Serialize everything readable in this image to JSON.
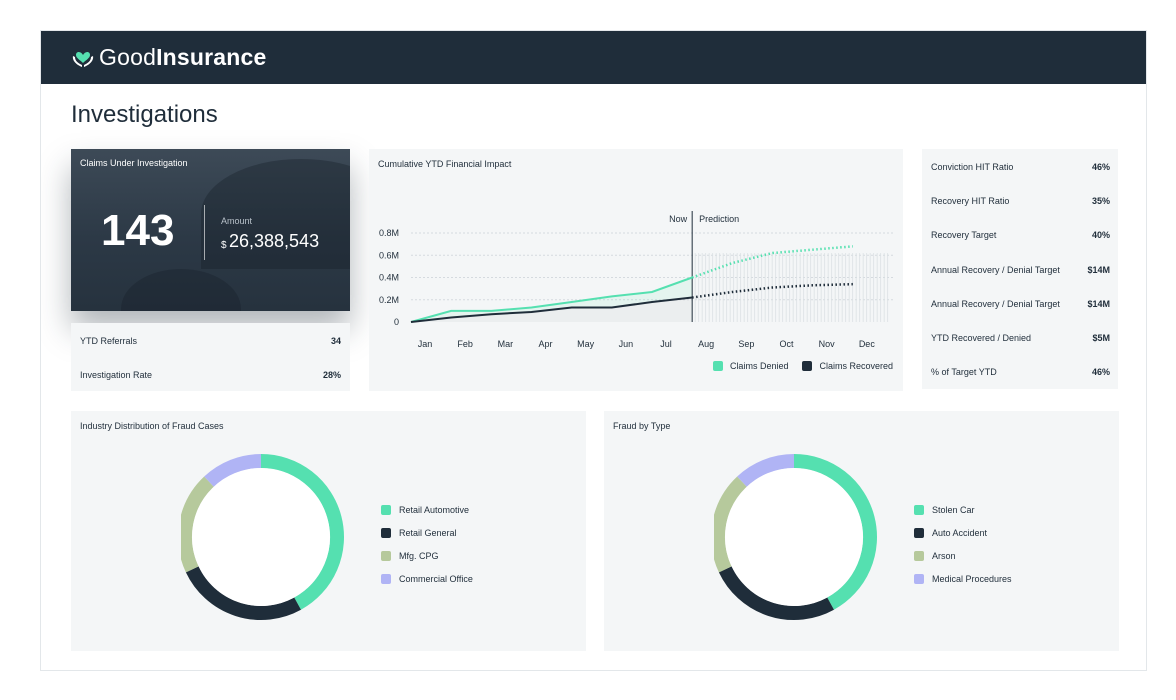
{
  "brand": {
    "name_light": "Good",
    "name_bold": "Insurance",
    "icon": "heart-hands-icon"
  },
  "page": {
    "title": "Investigations"
  },
  "claims": {
    "title": "Claims Under Investigation",
    "count": "143",
    "amount_label": "Amount",
    "currency": "$",
    "amount": "26,388,543"
  },
  "left_stats": [
    {
      "label": "YTD Referrals",
      "value": "34"
    },
    {
      "label": "Investigation Rate",
      "value": "28%"
    }
  ],
  "financial_chart": {
    "title": "Cumulative YTD Financial Impact",
    "now_label": "Now",
    "prediction_label": "Prediction"
  },
  "chart_data": {
    "type": "line",
    "categories": [
      "Jan",
      "Feb",
      "Mar",
      "Apr",
      "May",
      "Jun",
      "Jul",
      "Aug",
      "Sep",
      "Oct",
      "Nov",
      "Dec"
    ],
    "y_ticks": [
      "0.8M",
      "0.6M",
      "0.4M",
      "0.2M",
      "0"
    ],
    "ylim": [
      0,
      0.8
    ],
    "now_index": 7,
    "grid": true,
    "legend_position": "bottom-right",
    "series": [
      {
        "name": "Claims Denied",
        "color": "#55e0b0",
        "values": [
          0.0,
          0.1,
          0.1,
          0.13,
          0.18,
          0.23,
          0.27,
          0.4,
          0.53,
          0.62,
          0.65,
          0.68
        ]
      },
      {
        "name": "Claims Recovered",
        "color": "#1f2d3a",
        "values": [
          0.0,
          0.04,
          0.07,
          0.09,
          0.13,
          0.13,
          0.18,
          0.22,
          0.27,
          0.31,
          0.33,
          0.34
        ]
      }
    ]
  },
  "metrics": [
    {
      "label": "Conviction HIT Ratio",
      "value": "46%"
    },
    {
      "label": "Recovery HIT Ratio",
      "value": "35%"
    },
    {
      "label": "Recovery Target",
      "value": "40%"
    },
    {
      "label": "Annual Recovery / Denial Target",
      "value": "$14M"
    },
    {
      "label": "Annual Recovery / Denial Target",
      "value": "$14M"
    },
    {
      "label": "YTD Recovered / Denied",
      "value": "$5M"
    },
    {
      "label": "% of Target YTD",
      "value": "46%"
    }
  ],
  "industry_distribution": {
    "title": "Industry Distribution of Fraud Cases",
    "items": [
      {
        "label": "Retail Automotive",
        "value": 42,
        "color": "#55e0b0"
      },
      {
        "label": "Retail General",
        "value": 26,
        "color": "#1f2d3a"
      },
      {
        "label": "Mfg. CPG",
        "value": 20,
        "color": "#b6c99c"
      },
      {
        "label": "Commercial Office",
        "value": 12,
        "color": "#b0b4f5"
      }
    ]
  },
  "fraud_by_type": {
    "title": "Fraud by Type",
    "items": [
      {
        "label": "Stolen Car",
        "value": 42,
        "color": "#55e0b0"
      },
      {
        "label": "Auto Accident",
        "value": 26,
        "color": "#1f2d3a"
      },
      {
        "label": "Arson",
        "value": 20,
        "color": "#b6c99c"
      },
      {
        "label": "Medical Procedures",
        "value": 12,
        "color": "#b0b4f5"
      }
    ]
  }
}
